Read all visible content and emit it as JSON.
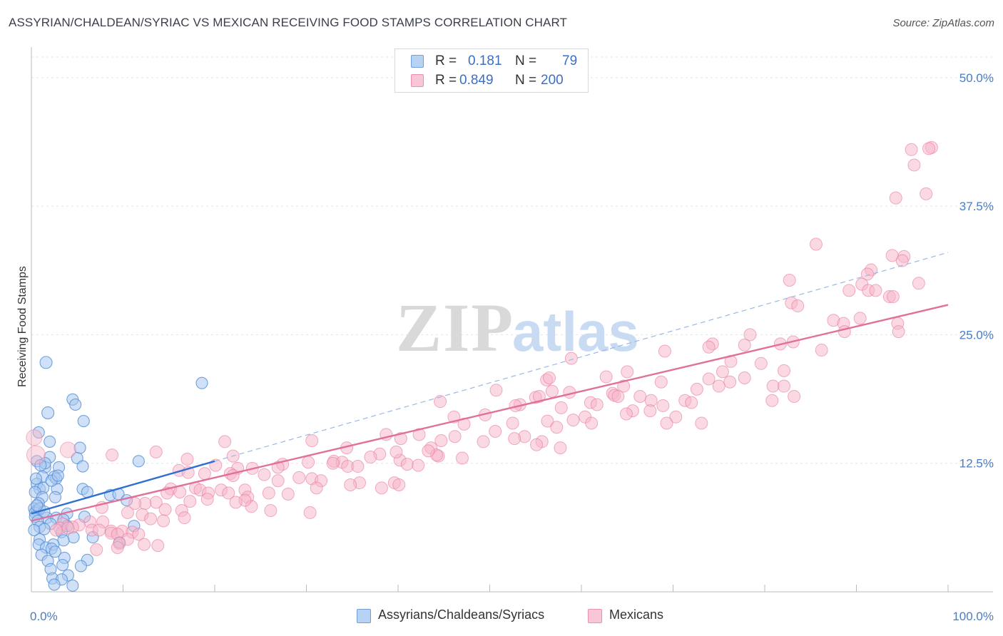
{
  "header": {
    "title": "ASSYRIAN/CHALDEAN/SYRIAC VS MEXICAN RECEIVING FOOD STAMPS CORRELATION CHART",
    "source": "Source: ZipAtlas.com"
  },
  "watermark": {
    "zip": "ZIP",
    "atlas": "atlas"
  },
  "legend": {
    "rows": [
      {
        "r_label": "R =",
        "r_value": "0.181",
        "n_label": "N =",
        "n_value": "79",
        "color": "#a9c8f0"
      },
      {
        "r_label": "R =",
        "r_value": "0.849",
        "n_label": "N =",
        "n_value": "200",
        "color": "#f7b3c8"
      }
    ],
    "bottom": [
      {
        "label": "Assyrians/Chaldeans/Syriacs",
        "color": "#a9c8f0"
      },
      {
        "label": "Mexicans",
        "color": "#f7b3c8"
      }
    ]
  },
  "chart_data": {
    "type": "scatter",
    "ylabel": "Receiving Food Stamps",
    "xlabel": "",
    "xlim": [
      0,
      100
    ],
    "ylim": [
      0,
      52
    ],
    "x_tick_labels": [
      "0.0%",
      "100.0%"
    ],
    "y_ticks": [
      12.5,
      25.0,
      37.5,
      50.0
    ],
    "y_tick_labels": [
      "12.5%",
      "25.0%",
      "37.5%",
      "50.0%"
    ],
    "grid": true,
    "colors": {
      "blue": "#5b93d8",
      "blue_fill": "#a9c8f0",
      "pink": "#e87aa0",
      "pink_fill": "#f7b3c8",
      "blue_line": "#2f6fd0",
      "pink_line": "#e0709a",
      "dash": "#9ab8e6"
    },
    "series": [
      {
        "name": "Assyrians/Chaldeans/Syriacs",
        "points": [
          [
            1.6,
            22.3
          ],
          [
            1.8,
            17.4
          ],
          [
            4.5,
            18.7
          ],
          [
            4.8,
            18.2
          ],
          [
            5.7,
            16.6
          ],
          [
            18.6,
            20.3
          ],
          [
            0.8,
            15.5
          ],
          [
            2.0,
            14.6
          ],
          [
            5.3,
            14.0
          ],
          [
            5.0,
            13.0
          ],
          [
            2.0,
            13.1
          ],
          [
            0.6,
            12.7
          ],
          [
            1.5,
            12.1
          ],
          [
            3.0,
            12.1
          ],
          [
            5.6,
            12.2
          ],
          [
            11.7,
            12.7
          ],
          [
            1.2,
            11.2
          ],
          [
            2.5,
            11.2
          ],
          [
            2.7,
            11.0
          ],
          [
            0.6,
            10.5
          ],
          [
            0.9,
            10.0
          ],
          [
            1.3,
            10.1
          ],
          [
            2.8,
            10.0
          ],
          [
            5.6,
            10.0
          ],
          [
            0.4,
            9.7
          ],
          [
            6.1,
            9.7
          ],
          [
            8.6,
            9.4
          ],
          [
            9.5,
            9.5
          ],
          [
            1.2,
            9.2
          ],
          [
            2.6,
            9.2
          ],
          [
            10.4,
            8.9
          ],
          [
            0.8,
            8.6
          ],
          [
            0.3,
            8.1
          ],
          [
            0.6,
            7.9
          ],
          [
            0.4,
            7.7
          ],
          [
            3.9,
            7.6
          ],
          [
            0.4,
            7.3
          ],
          [
            1.7,
            7.2
          ],
          [
            2.7,
            7.2
          ],
          [
            3.5,
            7.0
          ],
          [
            5.8,
            7.3
          ],
          [
            0.7,
            6.9
          ],
          [
            2.1,
            6.6
          ],
          [
            0.9,
            6.3
          ],
          [
            1.4,
            6.1
          ],
          [
            3.9,
            6.4
          ],
          [
            11.2,
            6.4
          ],
          [
            0.3,
            6.0
          ],
          [
            3.3,
            5.8
          ],
          [
            4.6,
            5.3
          ],
          [
            6.7,
            5.3
          ],
          [
            0.9,
            5.1
          ],
          [
            3.5,
            5.0
          ],
          [
            9.6,
            4.8
          ],
          [
            0.8,
            4.6
          ],
          [
            1.6,
            4.3
          ],
          [
            2.4,
            4.6
          ],
          [
            2.2,
            4.2
          ],
          [
            2.6,
            3.9
          ],
          [
            1.1,
            3.6
          ],
          [
            3.6,
            3.3
          ],
          [
            1.8,
            3.0
          ],
          [
            6.1,
            3.1
          ],
          [
            3.4,
            2.6
          ],
          [
            5.4,
            2.5
          ],
          [
            2.1,
            2.2
          ],
          [
            4.0,
            1.6
          ],
          [
            2.3,
            1.3
          ],
          [
            3.3,
            1.2
          ],
          [
            2.5,
            0.7
          ],
          [
            4.5,
            0.6
          ],
          [
            1.5,
            12.5
          ],
          [
            0.5,
            11.0
          ],
          [
            1.0,
            12.3
          ],
          [
            2.2,
            10.8
          ],
          [
            0.9,
            8.1
          ],
          [
            1.4,
            7.8
          ],
          [
            2.9,
            11.3
          ],
          [
            0.6,
            8.4
          ]
        ],
        "fit": {
          "x": [
            0,
            20
          ],
          "y": [
            7.6,
            12.7
          ]
        },
        "fit_extension": {
          "x": [
            20,
            100
          ],
          "y": [
            12.7,
            33.0
          ]
        }
      },
      {
        "name": "Mexicans",
        "points": [
          [
            96.0,
            43.0
          ],
          [
            98.2,
            43.2
          ],
          [
            97.9,
            43.1
          ],
          [
            96.3,
            41.5
          ],
          [
            97.6,
            38.7
          ],
          [
            94.3,
            38.3
          ],
          [
            85.6,
            33.8
          ],
          [
            93.9,
            32.7
          ],
          [
            95.2,
            32.6
          ],
          [
            95.0,
            32.2
          ],
          [
            91.6,
            31.3
          ],
          [
            91.2,
            30.9
          ],
          [
            96.8,
            30.0
          ],
          [
            82.7,
            30.3
          ],
          [
            90.6,
            29.9
          ],
          [
            89.2,
            29.3
          ],
          [
            91.3,
            29.3
          ],
          [
            92.1,
            29.3
          ],
          [
            93.6,
            28.7
          ],
          [
            94.0,
            28.7
          ],
          [
            82.9,
            28.1
          ],
          [
            83.6,
            27.8
          ],
          [
            87.5,
            26.4
          ],
          [
            90.4,
            26.6
          ],
          [
            88.6,
            26.1
          ],
          [
            94.5,
            26.1
          ],
          [
            94.6,
            25.3
          ],
          [
            88.7,
            25.3
          ],
          [
            78.4,
            25.0
          ],
          [
            74.3,
            24.1
          ],
          [
            81.7,
            24.1
          ],
          [
            73.9,
            23.8
          ],
          [
            77.8,
            24.0
          ],
          [
            83.1,
            24.3
          ],
          [
            86.2,
            23.5
          ],
          [
            69.1,
            23.4
          ],
          [
            58.9,
            22.7
          ],
          [
            76.3,
            22.4
          ],
          [
            79.6,
            22.2
          ],
          [
            82.1,
            21.5
          ],
          [
            75.4,
            21.4
          ],
          [
            65.0,
            21.4
          ],
          [
            62.7,
            20.9
          ],
          [
            73.9,
            20.7
          ],
          [
            56.2,
            20.6
          ],
          [
            56.5,
            20.8
          ],
          [
            77.8,
            20.8
          ],
          [
            76.2,
            20.4
          ],
          [
            68.7,
            20.4
          ],
          [
            64.6,
            20.0
          ],
          [
            75.0,
            20.0
          ],
          [
            80.9,
            20.0
          ],
          [
            82.1,
            20.0
          ],
          [
            72.6,
            19.7
          ],
          [
            50.7,
            19.6
          ],
          [
            56.8,
            19.5
          ],
          [
            58.7,
            19.4
          ],
          [
            63.4,
            19.3
          ],
          [
            63.6,
            19.1
          ],
          [
            66.4,
            19.0
          ],
          [
            83.2,
            19.0
          ],
          [
            64.0,
            19.0
          ],
          [
            55.0,
            18.9
          ],
          [
            55.4,
            19.0
          ],
          [
            67.6,
            18.6
          ],
          [
            80.8,
            18.6
          ],
          [
            71.3,
            18.6
          ],
          [
            44.6,
            18.5
          ],
          [
            61.0,
            18.4
          ],
          [
            72.0,
            18.4
          ],
          [
            53.3,
            18.2
          ],
          [
            61.7,
            18.2
          ],
          [
            68.9,
            18.1
          ],
          [
            52.8,
            18.1
          ],
          [
            57.8,
            17.9
          ],
          [
            65.6,
            17.6
          ],
          [
            67.5,
            17.6
          ],
          [
            64.9,
            17.3
          ],
          [
            49.5,
            17.2
          ],
          [
            46.1,
            17.0
          ],
          [
            59.1,
            16.7
          ],
          [
            70.3,
            17.0
          ],
          [
            60.4,
            17.0
          ],
          [
            56.3,
            16.6
          ],
          [
            61.1,
            16.4
          ],
          [
            69.3,
            16.4
          ],
          [
            73.1,
            16.4
          ],
          [
            52.5,
            16.4
          ],
          [
            47.2,
            16.3
          ],
          [
            57.3,
            16.0
          ],
          [
            50.6,
            15.6
          ],
          [
            38.7,
            15.3
          ],
          [
            42.3,
            15.3
          ],
          [
            46.2,
            15.1
          ],
          [
            53.8,
            15.1
          ],
          [
            40.3,
            14.9
          ],
          [
            44.7,
            14.7
          ],
          [
            49.3,
            14.6
          ],
          [
            55.7,
            14.6
          ],
          [
            55.1,
            14.3
          ],
          [
            57.7,
            14.0
          ],
          [
            43.6,
            14.0
          ],
          [
            34.4,
            14.0
          ],
          [
            38.0,
            13.4
          ],
          [
            37.0,
            13.1
          ],
          [
            44.4,
            13.2
          ],
          [
            40.2,
            12.8
          ],
          [
            30.2,
            12.6
          ],
          [
            33.0,
            12.7
          ],
          [
            33.9,
            12.6
          ],
          [
            27.4,
            12.4
          ],
          [
            41.0,
            12.4
          ],
          [
            42.2,
            12.3
          ],
          [
            34.5,
            12.2
          ],
          [
            26.9,
            12.1
          ],
          [
            35.6,
            12.2
          ],
          [
            22.5,
            12.0
          ],
          [
            24.1,
            12.0
          ],
          [
            16.1,
            11.8
          ],
          [
            17.1,
            11.6
          ],
          [
            18.9,
            11.5
          ],
          [
            21.7,
            11.5
          ],
          [
            22.0,
            11.3
          ],
          [
            25.4,
            11.4
          ],
          [
            29.2,
            11.1
          ],
          [
            30.6,
            11.0
          ],
          [
            26.9,
            10.8
          ],
          [
            31.6,
            10.8
          ],
          [
            35.8,
            10.6
          ],
          [
            39.6,
            10.6
          ],
          [
            40.1,
            10.4
          ],
          [
            34.8,
            10.4
          ],
          [
            38.2,
            10.1
          ],
          [
            31.1,
            10.1
          ],
          [
            17.9,
            10.1
          ],
          [
            15.2,
            10.0
          ],
          [
            18.4,
            9.9
          ],
          [
            20.7,
            9.9
          ],
          [
            23.3,
            9.9
          ],
          [
            16.2,
            9.7
          ],
          [
            14.8,
            9.6
          ],
          [
            19.3,
            9.6
          ],
          [
            21.5,
            9.6
          ],
          [
            25.9,
            9.6
          ],
          [
            28.0,
            9.5
          ],
          [
            23.6,
            9.2
          ],
          [
            19.2,
            9.0
          ],
          [
            17.3,
            8.8
          ],
          [
            13.6,
            8.7
          ],
          [
            12.4,
            8.6
          ],
          [
            11.3,
            8.6
          ],
          [
            24.0,
            8.3
          ],
          [
            14.6,
            8.0
          ],
          [
            16.4,
            7.9
          ],
          [
            26.1,
            7.9
          ],
          [
            10.5,
            7.7
          ],
          [
            30.4,
            7.7
          ],
          [
            12.1,
            7.5
          ],
          [
            16.7,
            7.2
          ],
          [
            13.0,
            7.1
          ],
          [
            14.4,
            6.9
          ],
          [
            6.4,
            6.8
          ],
          [
            7.8,
            6.8
          ],
          [
            3.4,
            6.6
          ],
          [
            5.2,
            6.5
          ],
          [
            4.5,
            6.3
          ],
          [
            3.1,
            6.2
          ],
          [
            2.7,
            6.0
          ],
          [
            4.0,
            6.2
          ],
          [
            6.6,
            6.0
          ],
          [
            7.4,
            6.0
          ],
          [
            8.7,
            5.9
          ],
          [
            9.9,
            5.9
          ],
          [
            11.0,
            5.8
          ],
          [
            8.7,
            5.7
          ],
          [
            9.4,
            5.6
          ],
          [
            11.7,
            5.6
          ],
          [
            10.5,
            5.1
          ],
          [
            9.6,
            4.7
          ],
          [
            12.3,
            4.6
          ],
          [
            13.8,
            4.5
          ],
          [
            9.4,
            4.3
          ],
          [
            7.1,
            4.1
          ],
          [
            23.3,
            8.9
          ],
          [
            22.3,
            8.7
          ],
          [
            7.7,
            8.2
          ],
          [
            17.0,
            12.9
          ],
          [
            32.9,
            12.5
          ],
          [
            8.8,
            13.3
          ],
          [
            20.1,
            12.3
          ],
          [
            13.6,
            13.6
          ],
          [
            22.0,
            13.2
          ],
          [
            44.2,
            13.3
          ],
          [
            21.1,
            14.6
          ],
          [
            30.6,
            14.7
          ],
          [
            43.3,
            13.7
          ],
          [
            47.0,
            13.0
          ],
          [
            39.8,
            13.6
          ],
          [
            52.7,
            14.9
          ]
        ],
        "fit": {
          "x": [
            0,
            100
          ],
          "y": [
            6.9,
            27.9
          ]
        }
      }
    ]
  }
}
